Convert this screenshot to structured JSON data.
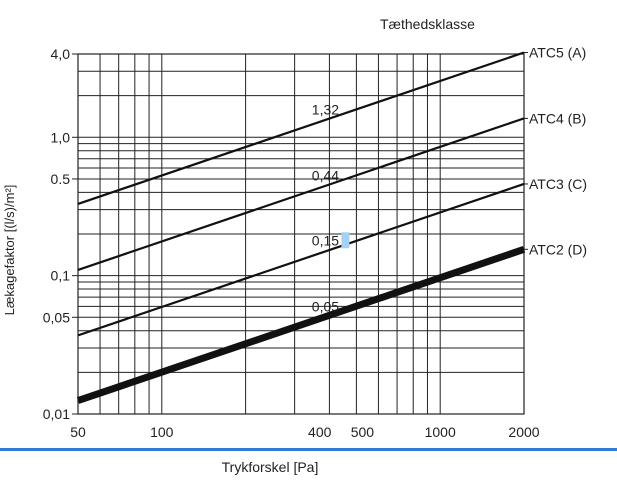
{
  "chart_data": {
    "type": "line",
    "title": "",
    "xlabel": "Trykforskel [Pa]",
    "ylabel": "Lækagefaktor [(l/s)/m²]",
    "xscale": "log",
    "yscale": "log",
    "xlim": [
      50,
      2000
    ],
    "ylim": [
      0.01,
      4.0
    ],
    "grid": true,
    "legend_title": "Tæthedsklasse",
    "legend_position": "right",
    "x_ticks": [
      {
        "value": 50,
        "label": "50"
      },
      {
        "value": 100,
        "label": "100"
      },
      {
        "value": 400,
        "label": "400"
      },
      {
        "value": 500,
        "label": "500"
      },
      {
        "value": 1000,
        "label": "1000"
      },
      {
        "value": 2000,
        "label": "2000"
      }
    ],
    "y_ticks": [
      {
        "value": 0.01,
        "label": "0,01"
      },
      {
        "value": 0.05,
        "label": "0,05"
      },
      {
        "value": 0.1,
        "label": "0,1"
      },
      {
        "value": 0.5,
        "label": "0.5"
      },
      {
        "value": 1.0,
        "label": "1,0"
      },
      {
        "value": 4.0,
        "label": "4,0"
      }
    ],
    "series": [
      {
        "name": "ATC5 (A)",
        "x": [
          50,
          2000
        ],
        "y": [
          0.33,
          4.1
        ],
        "weight": "normal",
        "value_at_400": {
          "y": 1.32,
          "label": "1,32"
        }
      },
      {
        "name": "ATC4 (B)",
        "x": [
          50,
          2000
        ],
        "y": [
          0.11,
          1.37
        ],
        "weight": "normal",
        "value_at_400": {
          "y": 0.44,
          "label": "0,44"
        }
      },
      {
        "name": "ATC3 (C)",
        "x": [
          50,
          2000
        ],
        "y": [
          0.037,
          0.46
        ],
        "weight": "normal",
        "value_at_400": {
          "y": 0.15,
          "label": "0,15"
        }
      },
      {
        "name": "ATC2 (D)",
        "x": [
          50,
          2000
        ],
        "y": [
          0.0125,
          0.155
        ],
        "weight": "bold",
        "value_at_400": {
          "y": 0.05,
          "label": "0,05"
        }
      }
    ]
  },
  "colors": {
    "line": "#111111",
    "grid": "#222222",
    "highlight": "#a8d0f0",
    "bottom_rule": "#2f7bd8"
  }
}
